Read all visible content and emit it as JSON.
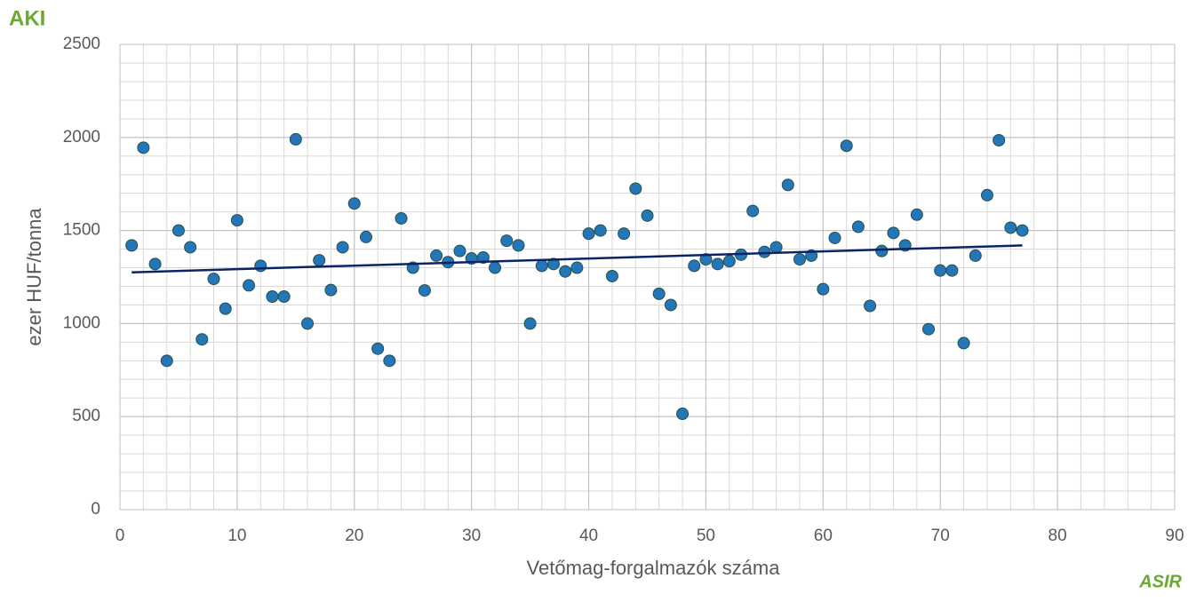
{
  "chart_data": {
    "type": "scatter",
    "xlabel": "Vetőmag-forgalmazók száma",
    "ylabel": "ezer HUF/tonna",
    "x": [
      1,
      2,
      3,
      4,
      5,
      6,
      7,
      8,
      9,
      10,
      11,
      12,
      13,
      14,
      15,
      16,
      17,
      18,
      19,
      20,
      21,
      22,
      23,
      24,
      25,
      26,
      27,
      28,
      29,
      30,
      31,
      32,
      33,
      34,
      35,
      36,
      37,
      38,
      39,
      40,
      41,
      42,
      43,
      44,
      45,
      46,
      47,
      48,
      49,
      50,
      51,
      52,
      53,
      54,
      55,
      56,
      57,
      58,
      59,
      60,
      61,
      62,
      63,
      64,
      65,
      66,
      67,
      68,
      69,
      70,
      71,
      72,
      73,
      74,
      75,
      76,
      77
    ],
    "values": [
      1420,
      1945,
      1320,
      800,
      1500,
      1410,
      915,
      1240,
      1080,
      1555,
      1205,
      1310,
      1145,
      1145,
      1990,
      1000,
      1340,
      1180,
      1410,
      1645,
      1465,
      865,
      800,
      1565,
      1300,
      1178,
      1365,
      1330,
      1390,
      1350,
      1355,
      1300,
      1445,
      1420,
      1000,
      1310,
      1320,
      1280,
      1300,
      1483,
      1500,
      1255,
      1483,
      1725,
      1580,
      1160,
      1100,
      515,
      1310,
      1345,
      1320,
      1335,
      1370,
      1605,
      1385,
      1410,
      1745,
      1345,
      1365,
      1185,
      1460,
      1955,
      1520,
      1095,
      1390,
      1487,
      1420,
      1585,
      970,
      1285,
      1285,
      895,
      1365,
      1690,
      1985,
      1515,
      1500
    ],
    "color": "#2377b8",
    "trendline": {
      "x": [
        1,
        77
      ],
      "values": [
        1275,
        1420
      ],
      "color": "#0b2466"
    },
    "xlim": [
      0,
      90
    ],
    "xticks": [
      0,
      10,
      20,
      30,
      40,
      50,
      60,
      70,
      80,
      90
    ],
    "ylim": [
      0,
      2500
    ],
    "yticks": [
      0,
      500,
      1000,
      1500,
      2000,
      2500
    ],
    "grid": true,
    "minor_grid": {
      "x": 2,
      "y": 100
    }
  },
  "logos": {
    "top_left": "AKI",
    "bottom_right": "ASIR"
  }
}
